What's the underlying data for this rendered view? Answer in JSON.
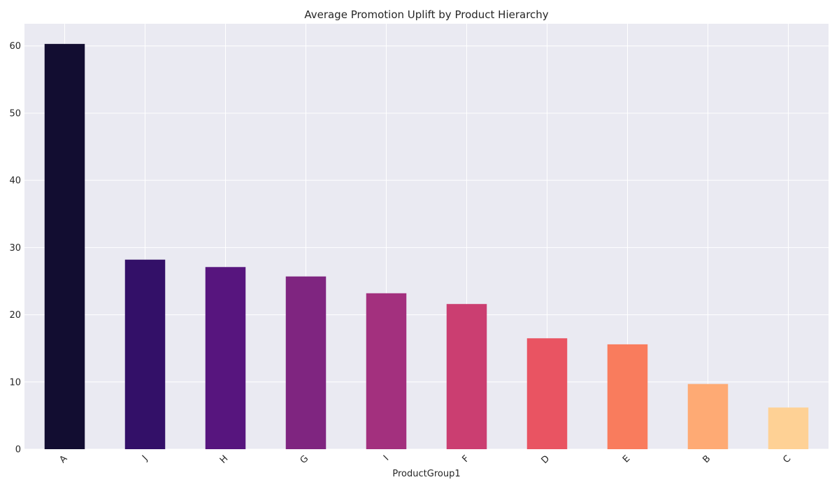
{
  "chart_data": {
    "type": "bar",
    "title": "Average Promotion Uplift by Product Hierarchy",
    "xlabel": "ProductGroup1",
    "ylabel": "",
    "categories": [
      "A",
      "J",
      "H",
      "G",
      "I",
      "F",
      "D",
      "E",
      "B",
      "C"
    ],
    "values": [
      60.3,
      28.2,
      27.1,
      25.7,
      23.2,
      21.6,
      16.5,
      15.6,
      9.7,
      6.2
    ],
    "ylim": [
      0,
      63.3
    ],
    "yticks": [
      0,
      10,
      20,
      30,
      40,
      50,
      60
    ],
    "grid": true,
    "background_color": "#eaeaf2",
    "bar_colors": [
      "#120d31",
      "#331068",
      "#57157e",
      "#7f2580",
      "#a3307e",
      "#cb3e71",
      "#e95462",
      "#f97c5d",
      "#feaa74",
      "#fed195"
    ]
  }
}
